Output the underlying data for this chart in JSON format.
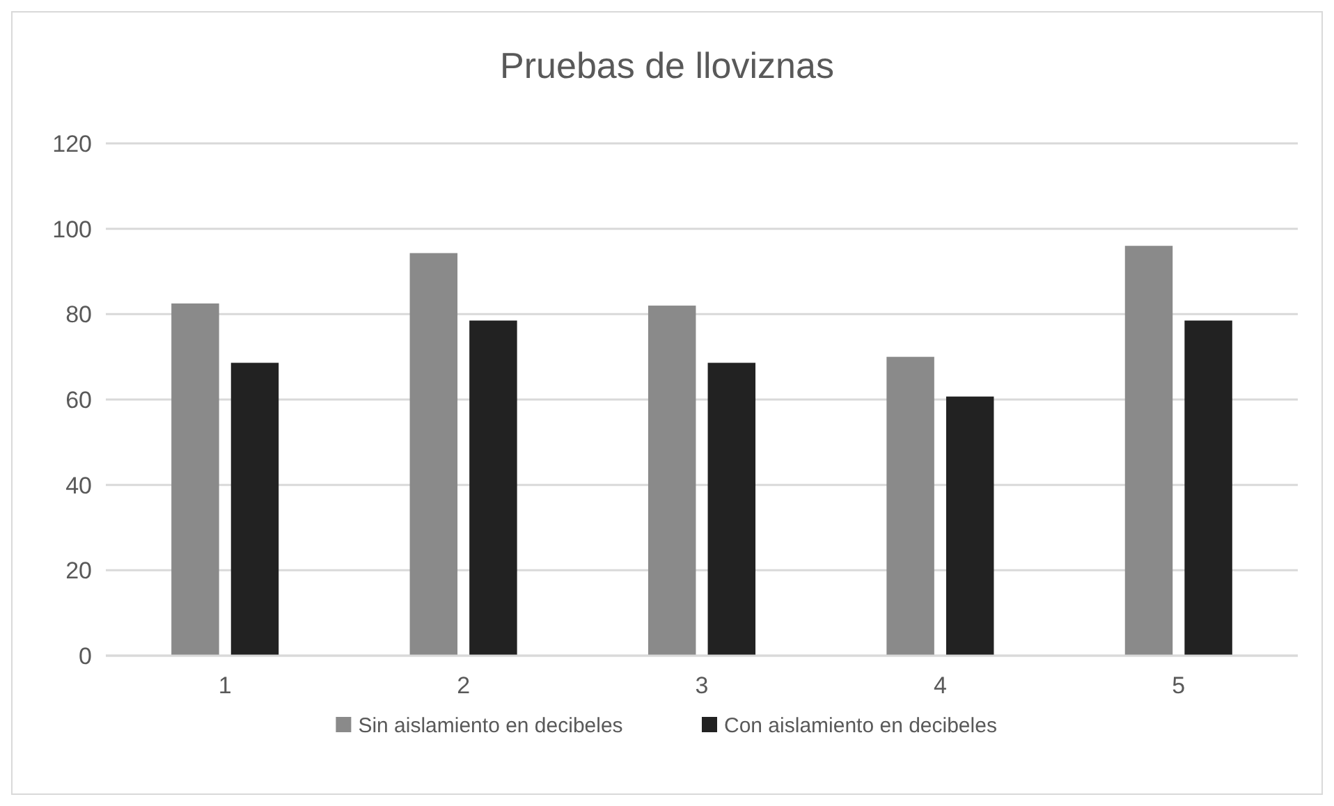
{
  "chart_data": {
    "type": "bar",
    "title": "Pruebas de lloviznas",
    "categories": [
      "1",
      "2",
      "3",
      "4",
      "5"
    ],
    "series": [
      {
        "name": "Sin aislamiento en decibeles",
        "color": "#8a8a8a",
        "values": [
          82.5,
          94.3,
          82,
          70,
          96
        ]
      },
      {
        "name": "Con aislamiento en decibeles",
        "color": "#222222",
        "values": [
          68.6,
          78.5,
          68.6,
          60.7,
          78.5
        ]
      }
    ],
    "ylim": [
      0,
      120
    ],
    "yticks": [
      0,
      20,
      40,
      60,
      80,
      100,
      120
    ],
    "grid": "y",
    "legend": "bottom"
  }
}
